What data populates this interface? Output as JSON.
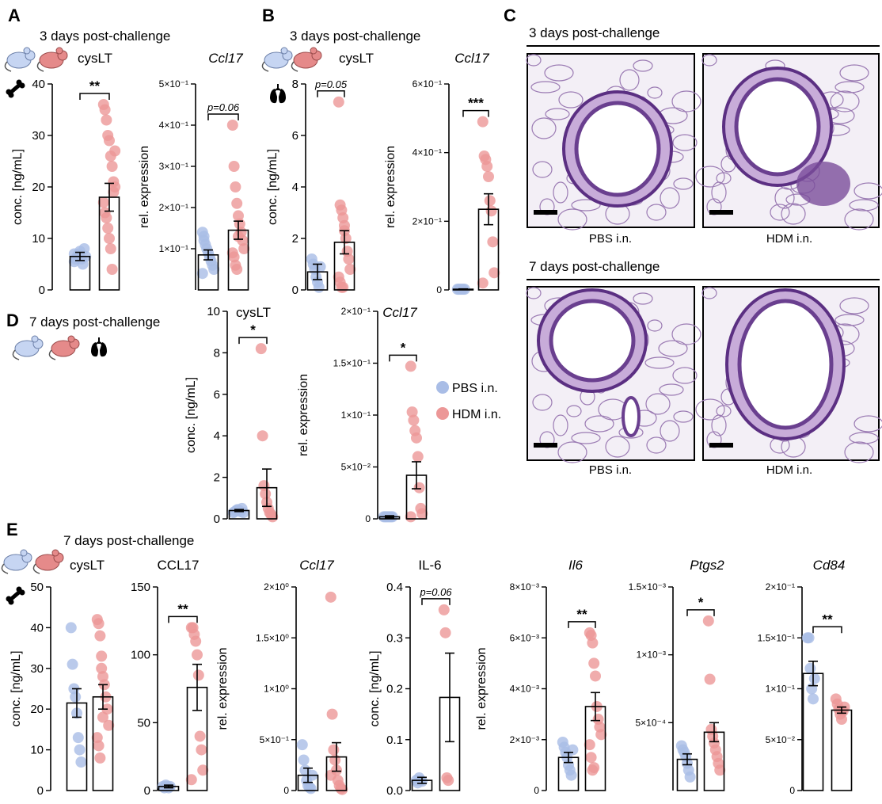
{
  "colors": {
    "pbs": "#a9bde6",
    "hdm": "#ec9797",
    "tissue": "#6a3f8f",
    "mouse_pbs": "#c6d5f2",
    "mouse_hdm": "#e58a8a"
  },
  "icons": {
    "mouse": "mouse-icon",
    "bone": "bone-icon",
    "lung": "lung-icon"
  },
  "panels": {
    "A": {
      "label": "A",
      "title": "3 days post-challenge"
    },
    "B": {
      "label": "B",
      "title": "3 days post-challenge"
    },
    "C": {
      "label": "C",
      "title_top": "3 days post-challenge",
      "title_bottom": "7 days post-challenge",
      "captions": [
        "PBS i.n.",
        "HDM i.n.",
        "PBS i.n.",
        "HDM i.n."
      ]
    },
    "D": {
      "label": "D",
      "title": "7 days post-challenge"
    },
    "E": {
      "label": "E",
      "title": "7 days post-challenge"
    }
  },
  "legend": {
    "items": [
      {
        "name": "PBS i.n.",
        "color": "#a9bde6"
      },
      {
        "name": "HDM i.n.",
        "color": "#ec9797"
      }
    ]
  },
  "chart_data": [
    {
      "id": "A1",
      "type": "bar",
      "title": "cysLT",
      "ylabel": "conc. [ng/mL]",
      "ylim": [
        0,
        40
      ],
      "yticks": [
        0,
        10,
        20,
        30,
        40
      ],
      "ytick_labels": [
        "0",
        "10",
        "20",
        "30",
        "40"
      ],
      "sig": "**",
      "groups": [
        {
          "name": "PBS i.n.",
          "mean": 6.5,
          "sem": 0.8,
          "points": [
            5.5,
            6,
            6.5,
            7,
            7.5,
            6,
            5,
            8,
            6.5,
            7
          ]
        },
        {
          "name": "HDM i.n.",
          "mean": 18,
          "sem": 2.7,
          "points": [
            36,
            35,
            33,
            30,
            29,
            26,
            24,
            21,
            20,
            17,
            15,
            14,
            12,
            10,
            8,
            4,
            19,
            27
          ]
        }
      ]
    },
    {
      "id": "A2",
      "type": "bar",
      "title": "Ccl17",
      "title_italic": true,
      "ylabel": "rel. expression",
      "ylim": [
        0,
        0.5
      ],
      "yticks": [
        0.1,
        0.2,
        0.3,
        0.4,
        0.5
      ],
      "ytick_labels": [
        "1×10⁻¹",
        "2×10⁻¹",
        "3×10⁻¹",
        "4×10⁻¹",
        "5×10⁻¹"
      ],
      "sig": "p=0.06",
      "groups": [
        {
          "name": "PBS i.n.",
          "mean": 0.085,
          "sem": 0.012,
          "points": [
            0.14,
            0.13,
            0.11,
            0.1,
            0.09,
            0.08,
            0.07,
            0.06,
            0.05,
            0.04,
            0.12
          ]
        },
        {
          "name": "HDM i.n.",
          "mean": 0.145,
          "sem": 0.022,
          "points": [
            0.4,
            0.3,
            0.25,
            0.21,
            0.18,
            0.16,
            0.14,
            0.12,
            0.1,
            0.09,
            0.08,
            0.06,
            0.05,
            0.13
          ]
        }
      ]
    },
    {
      "id": "B1",
      "type": "bar",
      "title": "cysLT",
      "ylabel": "conc. [ng/mL]",
      "ylim": [
        0,
        8
      ],
      "yticks": [
        0,
        2,
        4,
        6,
        8
      ],
      "ytick_labels": [
        "0",
        "2",
        "4",
        "6",
        "8"
      ],
      "sig": "p=0.05",
      "groups": [
        {
          "name": "PBS i.n.",
          "mean": 0.7,
          "sem": 0.3,
          "points": [
            1.2,
            1.0,
            0.8,
            0.5,
            0.3,
            0.1,
            0.9
          ]
        },
        {
          "name": "HDM i.n.",
          "mean": 1.85,
          "sem": 0.45,
          "points": [
            7.3,
            3.3,
            3.1,
            2.8,
            2.5,
            2.0,
            1.5,
            1.2,
            0.8,
            0.5,
            0.3,
            0.1,
            0.1,
            2.3
          ]
        }
      ]
    },
    {
      "id": "B2",
      "type": "bar",
      "title": "Ccl17",
      "title_italic": true,
      "ylabel": "rel. expression",
      "ylim": [
        0,
        0.6
      ],
      "yticks": [
        0,
        0.2,
        0.4,
        0.6
      ],
      "ytick_labels": [
        "0",
        "2×10⁻¹",
        "4×10⁻¹",
        "6×10⁻¹"
      ],
      "sig": "***",
      "groups": [
        {
          "name": "PBS i.n.",
          "mean": 0.002,
          "sem": 0.001,
          "points": [
            0.002,
            0.002,
            0.002,
            0.002,
            0.002,
            0.002
          ]
        },
        {
          "name": "HDM i.n.",
          "mean": 0.235,
          "sem": 0.045,
          "points": [
            0.49,
            0.39,
            0.38,
            0.36,
            0.33,
            0.26,
            0.23,
            0.14,
            0.05,
            0.02
          ]
        }
      ]
    },
    {
      "id": "D1",
      "type": "bar",
      "title": "cysLT",
      "ylabel": "conc. [ng/mL]",
      "ylim": [
        0,
        10
      ],
      "yticks": [
        0,
        2,
        4,
        6,
        8,
        10
      ],
      "ytick_labels": [
        "0",
        "2",
        "4",
        "6",
        "8",
        "10"
      ],
      "sig": "*",
      "groups": [
        {
          "name": "PBS i.n.",
          "mean": 0.4,
          "sem": 0.05,
          "points": [
            0.3,
            0.35,
            0.4,
            0.45,
            0.4,
            0.35,
            0.5,
            0.3
          ]
        },
        {
          "name": "HDM i.n.",
          "mean": 1.5,
          "sem": 0.9,
          "points": [
            8.2,
            4.0,
            1.6,
            1.2,
            0.8,
            0.5,
            0.3,
            0.2,
            0.1
          ]
        }
      ]
    },
    {
      "id": "D2",
      "type": "bar",
      "title": "Ccl17",
      "title_italic": true,
      "ylabel": "rel. expression",
      "ylim": [
        0,
        0.2
      ],
      "yticks": [
        0,
        0.05,
        0.1,
        0.15,
        0.2
      ],
      "ytick_labels": [
        "0",
        "5×10⁻²",
        "1×10⁻¹",
        "1.5×10⁻¹",
        "2×10⁻¹"
      ],
      "sig": "*",
      "groups": [
        {
          "name": "PBS i.n.",
          "mean": 0.002,
          "sem": 0.001,
          "points": [
            0.002,
            0.002,
            0.002,
            0.002,
            0.002,
            0.002,
            0.002
          ]
        },
        {
          "name": "HDM i.n.",
          "mean": 0.042,
          "sem": 0.013,
          "points": [
            0.147,
            0.103,
            0.095,
            0.085,
            0.078,
            0.06,
            0.03,
            0.01,
            0.005,
            0.002
          ]
        }
      ]
    },
    {
      "id": "E1",
      "type": "bar",
      "title": "cysLT",
      "ylabel": "conc. [ng/mL]",
      "ylim": [
        0,
        50
      ],
      "yticks": [
        0,
        10,
        20,
        30,
        40,
        50
      ],
      "ytick_labels": [
        "0",
        "10",
        "20",
        "30",
        "40",
        "50"
      ],
      "sig": "",
      "groups": [
        {
          "name": "PBS i.n.",
          "mean": 21.5,
          "sem": 3.5,
          "points": [
            40,
            31,
            25,
            23,
            19,
            13,
            10,
            7
          ]
        },
        {
          "name": "HDM i.n.",
          "mean": 23,
          "sem": 3,
          "points": [
            42,
            41,
            38,
            33,
            28,
            26,
            23,
            20,
            16,
            13,
            11,
            8,
            30,
            18
          ]
        }
      ]
    },
    {
      "id": "E2",
      "type": "bar",
      "title": "CCL17",
      "ylabel": "",
      "ylim": [
        0,
        150
      ],
      "yticks": [
        0,
        50,
        100,
        150
      ],
      "ytick_labels": [
        "0",
        "50",
        "100",
        "150"
      ],
      "sig": "**",
      "groups": [
        {
          "name": "PBS i.n.",
          "mean": 3,
          "sem": 1,
          "points": [
            3,
            2,
            4,
            3,
            2,
            3
          ]
        },
        {
          "name": "HDM i.n.",
          "mean": 76,
          "sem": 17,
          "points": [
            120,
            120,
            115,
            110,
            100,
            85,
            40,
            30,
            15,
            8
          ]
        }
      ]
    },
    {
      "id": "E3",
      "type": "bar",
      "title": "Ccl17",
      "title_italic": true,
      "ylabel": "rel. expression",
      "ylim": [
        0,
        2
      ],
      "yticks": [
        0,
        0.5,
        1.0,
        1.5,
        2.0
      ],
      "ytick_labels": [
        "0",
        "5×10⁻¹",
        "1×10⁰",
        "1.5×10⁰",
        "2×10⁰"
      ],
      "sig": "",
      "groups": [
        {
          "name": "PBS i.n.",
          "mean": 0.15,
          "sem": 0.07,
          "points": [
            0.45,
            0.3,
            0.2,
            0.1,
            0.05,
            0.03,
            0.02,
            0.15
          ]
        },
        {
          "name": "HDM i.n.",
          "mean": 0.33,
          "sem": 0.14,
          "points": [
            1.9,
            0.75,
            0.4,
            0.3,
            0.2,
            0.1,
            0.05,
            0.02,
            0.01,
            0.15
          ]
        }
      ]
    },
    {
      "id": "E4",
      "type": "bar",
      "title": "IL-6",
      "ylabel": "conc. [ng/mL]",
      "ylim": [
        0,
        0.4
      ],
      "yticks": [
        0,
        0.1,
        0.2,
        0.3,
        0.4
      ],
      "ytick_labels": [
        "0.0",
        "0.1",
        "0.2",
        "0.3",
        "0.4"
      ],
      "sig": "p=0.06",
      "groups": [
        {
          "name": "PBS i.n.",
          "mean": 0.02,
          "sem": 0.006,
          "points": [
            0.02,
            0.015,
            0.025,
            0.02,
            0.018
          ]
        },
        {
          "name": "HDM i.n.",
          "mean": 0.183,
          "sem": 0.087,
          "points": [
            0.355,
            0.31,
            0.025,
            0.02
          ]
        }
      ]
    },
    {
      "id": "E5",
      "type": "bar",
      "title": "Il6",
      "title_italic": true,
      "ylabel": "rel. expression",
      "ylim": [
        0,
        0.008
      ],
      "yticks": [
        0,
        0.002,
        0.004,
        0.006,
        0.008
      ],
      "ytick_labels": [
        "0",
        "2×10⁻³",
        "4×10⁻³",
        "6×10⁻³",
        "8×10⁻³"
      ],
      "sig": "**",
      "groups": [
        {
          "name": "PBS i.n.",
          "mean": 0.0013,
          "sem": 0.0002,
          "points": [
            0.0019,
            0.0017,
            0.0015,
            0.0013,
            0.001,
            0.0008,
            0.0006,
            0.0016
          ]
        },
        {
          "name": "HDM i.n.",
          "mean": 0.0033,
          "sem": 0.00055,
          "points": [
            0.0062,
            0.0061,
            0.0058,
            0.005,
            0.0045,
            0.0033,
            0.0028,
            0.0025,
            0.0022,
            0.0018,
            0.0013,
            0.0008,
            0.0009
          ]
        }
      ]
    },
    {
      "id": "E6",
      "type": "bar",
      "title": "Ptgs2",
      "title_italic": true,
      "ylabel": "",
      "ylim": [
        0,
        0.0015
      ],
      "yticks": [
        0.0005,
        0.001,
        0.0015
      ],
      "ytick_labels": [
        "5×10⁻⁴",
        "1×10⁻³",
        "1.5×10⁻³"
      ],
      "sig": "*",
      "groups": [
        {
          "name": "PBS i.n.",
          "mean": 0.00023,
          "sem": 4e-05,
          "points": [
            0.00033,
            0.0003,
            0.00028,
            0.00025,
            0.0002,
            0.00015,
            0.0001
          ]
        },
        {
          "name": "HDM i.n.",
          "mean": 0.00043,
          "sem": 7e-05,
          "points": [
            0.00125,
            0.00082,
            0.00045,
            0.0004,
            0.00035,
            0.0003,
            0.00025,
            0.0002,
            0.00015
          ]
        }
      ]
    },
    {
      "id": "E7",
      "type": "bar",
      "title": "Cd84",
      "title_italic": true,
      "ylabel": "",
      "ylim": [
        0,
        0.2
      ],
      "yticks": [
        0,
        0.05,
        0.1,
        0.15,
        0.2
      ],
      "ytick_labels": [
        "0",
        "5×10⁻²",
        "1×10⁻¹",
        "1.5×10⁻¹",
        "2×10⁻¹"
      ],
      "sig": "**",
      "groups": [
        {
          "name": "PBS i.n.",
          "mean": 0.115,
          "sem": 0.012,
          "points": [
            0.15,
            0.15,
            0.12,
            0.1,
            0.09,
            0.11
          ]
        },
        {
          "name": "HDM i.n.",
          "mean": 0.079,
          "sem": 0.003,
          "points": [
            0.09,
            0.085,
            0.08,
            0.075,
            0.07,
            0.078,
            0.082
          ]
        }
      ]
    }
  ]
}
